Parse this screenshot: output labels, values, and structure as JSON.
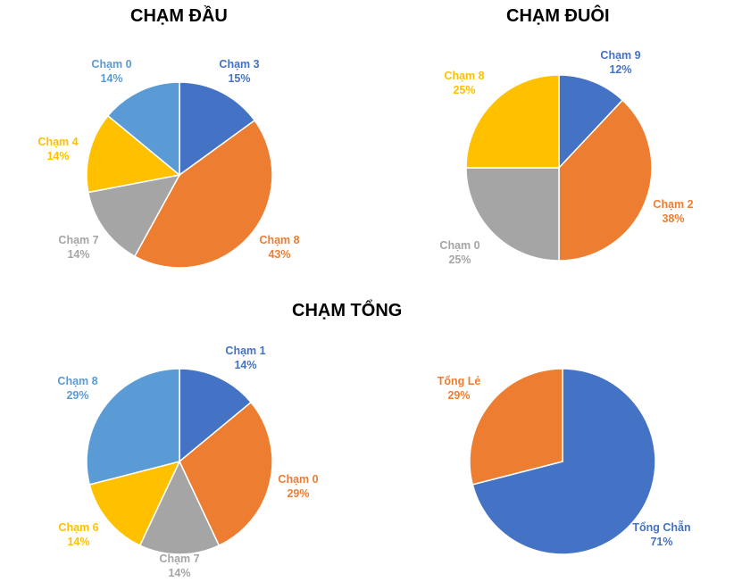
{
  "chart_data": [
    {
      "type": "pie",
      "title": "CHẠM ĐẦU",
      "slices": [
        {
          "label": "Chạm 3",
          "value": 15,
          "display": "15%",
          "color": "#4472C4"
        },
        {
          "label": "Chạm 8",
          "value": 43,
          "display": "43%",
          "color": "#ED7D31"
        },
        {
          "label": "Chạm 7",
          "value": 14,
          "display": "14%",
          "color": "#A5A5A5"
        },
        {
          "label": "Chạm 4",
          "value": 14,
          "display": "14%",
          "color": "#FFC000"
        },
        {
          "label": "Chạm 0",
          "value": 14,
          "display": "14%",
          "color": "#5B9BD5"
        }
      ]
    },
    {
      "type": "pie",
      "title": "CHẠM ĐUÔI",
      "slices": [
        {
          "label": "Chạm 9",
          "value": 12,
          "display": "12%",
          "color": "#4472C4"
        },
        {
          "label": "Chạm 2",
          "value": 38,
          "display": "38%",
          "color": "#ED7D31"
        },
        {
          "label": "Chạm 0",
          "value": 25,
          "display": "25%",
          "color": "#A5A5A5"
        },
        {
          "label": "Chạm 8",
          "value": 25,
          "display": "25%",
          "color": "#FFC000"
        }
      ]
    },
    {
      "type": "pie",
      "title": "CHẠM TỔNG",
      "slices": [
        {
          "label": "Chạm 1",
          "value": 14,
          "display": "14%",
          "color": "#4472C4"
        },
        {
          "label": "Chạm 0",
          "value": 29,
          "display": "29%",
          "color": "#ED7D31"
        },
        {
          "label": "Chạm 7",
          "value": 14,
          "display": "14%",
          "color": "#A5A5A5"
        },
        {
          "label": "Chạm 6",
          "value": 14,
          "display": "14%",
          "color": "#FFC000"
        },
        {
          "label": "Chạm 8",
          "value": 29,
          "display": "29%",
          "color": "#5B9BD5"
        }
      ]
    },
    {
      "type": "pie",
      "title": "",
      "slices": [
        {
          "label": "Tổng Chẵn",
          "value": 71,
          "display": "71%",
          "color": "#4472C4"
        },
        {
          "label": "Tổng Lẻ",
          "value": 29,
          "display": "29%",
          "color": "#ED7D31"
        }
      ]
    }
  ]
}
